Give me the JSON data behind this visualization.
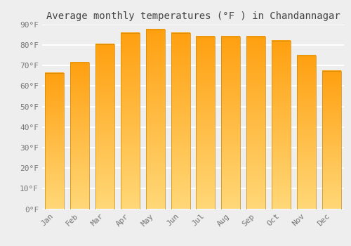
{
  "title": "Average monthly temperatures (°F ) in Chandannagar",
  "months": [
    "Jan",
    "Feb",
    "Mar",
    "Apr",
    "May",
    "Jun",
    "Jul",
    "Aug",
    "Sep",
    "Oct",
    "Nov",
    "Dec"
  ],
  "values": [
    66.5,
    71.5,
    80.5,
    86,
    87.5,
    86,
    84,
    84,
    84,
    82,
    75,
    67.5
  ],
  "bar_color_bottom": "#FFD878",
  "bar_color_top": "#FFA010",
  "ylim": [
    0,
    90
  ],
  "yticks": [
    0,
    10,
    20,
    30,
    40,
    50,
    60,
    70,
    80,
    90
  ],
  "ytick_labels": [
    "0°F",
    "10°F",
    "20°F",
    "30°F",
    "40°F",
    "50°F",
    "60°F",
    "70°F",
    "80°F",
    "90°F"
  ],
  "background_color": "#eeeeee",
  "grid_color": "#ffffff",
  "title_fontsize": 10,
  "tick_fontsize": 8,
  "bar_edge_color": "#CC8800"
}
